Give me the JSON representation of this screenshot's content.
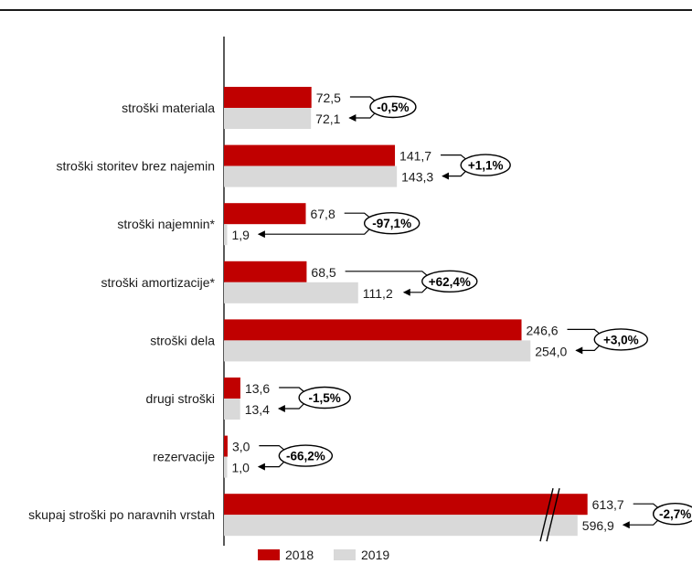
{
  "chart_data": {
    "type": "bar",
    "orientation": "horizontal",
    "title": "",
    "xlabel": "",
    "ylabel": "",
    "categories": [
      "stroški materiala",
      "stroški storitev brez najemin",
      "stroški  najemnin*",
      "stroški amortizacije*",
      "stroški dela",
      "drugi stroški",
      "rezervacije",
      "skupaj stroški po naravnih vrstah"
    ],
    "series": [
      {
        "name": "2018",
        "color": "#c00000",
        "values": [
          72.5,
          141.7,
          67.8,
          68.5,
          246.6,
          13.6,
          3.0,
          613.7
        ],
        "labels": [
          "72,5",
          "141,7",
          "67,8",
          "68,5",
          "246,6",
          "13,6",
          "3,0",
          "613,7"
        ]
      },
      {
        "name": "2019",
        "color": "#d9d9d9",
        "values": [
          72.1,
          143.3,
          1.9,
          111.2,
          254.0,
          13.4,
          1.0,
          596.9
        ],
        "labels": [
          "72,1",
          "143,3",
          "1,9",
          "111,2",
          "254,0",
          "13,4",
          "1,0",
          "596,9"
        ]
      }
    ],
    "changes": [
      "-0,5%",
      "+1,1%",
      "-97,1%",
      "+62,4%",
      "+3,0%",
      "-1,5%",
      "-66,2%",
      "-2,7%"
    ],
    "axis_break": {
      "category_index": 7
    },
    "legend": {
      "position": "bottom"
    },
    "grid": false
  }
}
